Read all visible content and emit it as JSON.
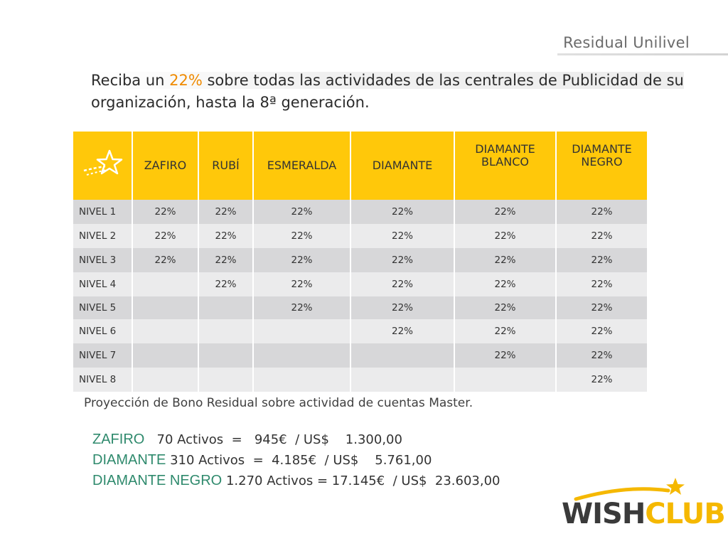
{
  "header": {
    "title": "Residual Unilivel"
  },
  "intro": {
    "part1": "Reciba un ",
    "highlight": "22%",
    "part2": " sobre todas las actividades de las centrales de Publicidad de su",
    "line2": "organización, hasta la 8ª generación."
  },
  "table": {
    "corner_icon": "star-icon",
    "columns": [
      "ZAFIRO",
      "RUBÍ",
      "ESMERALDA",
      "DIAMANTE",
      "DIAMANTE BLANCO",
      "DIAMANTE NEGRO"
    ],
    "rows": [
      {
        "label": "NIVEL 1",
        "cells": [
          "22%",
          "22%",
          "22%",
          "22%",
          "22%",
          "22%"
        ]
      },
      {
        "label": "NIVEL 2",
        "cells": [
          "22%",
          "22%",
          "22%",
          "22%",
          "22%",
          "22%"
        ]
      },
      {
        "label": "NIVEL 3",
        "cells": [
          "22%",
          "22%",
          "22%",
          "22%",
          "22%",
          "22%"
        ]
      },
      {
        "label": "NIVEL 4",
        "cells": [
          "",
          "22%",
          "22%",
          "22%",
          "22%",
          "22%"
        ]
      },
      {
        "label": "NIVEL 5",
        "cells": [
          "",
          "",
          "22%",
          "22%",
          "22%",
          "22%"
        ]
      },
      {
        "label": "NIVEL 6",
        "cells": [
          "",
          "",
          "",
          "22%",
          "22%",
          "22%"
        ]
      },
      {
        "label": "NIVEL 7",
        "cells": [
          "",
          "",
          "",
          "",
          "22%",
          "22%"
        ]
      },
      {
        "label": "NIVEL 8",
        "cells": [
          "",
          "",
          "",
          "",
          "",
          "22%"
        ]
      }
    ]
  },
  "projection": {
    "text": "Proyección de Bono Residual sobre actividad de cuentas Master."
  },
  "bonus": [
    {
      "level": "ZAFIRO",
      "detail": "   70 Activos  =   945€  / US$    1.300,00"
    },
    {
      "level": "DIAMANTE",
      "detail": " 310 Activos  =  4.185€  / US$    5.761,00"
    },
    {
      "level": "DIAMANTE NEGRO",
      "detail": " 1.270 Activos = 17.145€  / US$  23.603,00"
    }
  ],
  "logo": {
    "wish": "WISH",
    "club": "CLUB"
  },
  "colors": {
    "header_yellow": "#ffc80a",
    "highlight_orange": "#ef8a00",
    "level_green": "#2f8a6d",
    "club_gold": "#f5b800"
  }
}
